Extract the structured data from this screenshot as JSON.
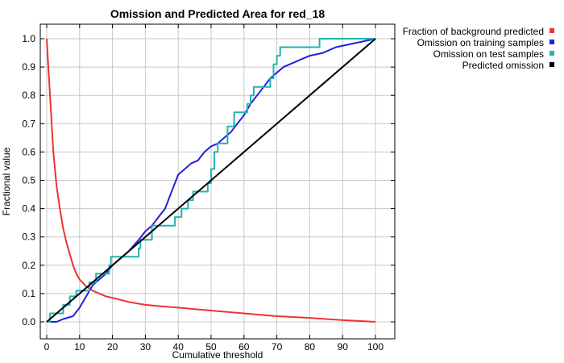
{
  "chart_data": {
    "type": "line",
    "title": "Omission and Predicted Area for red_18",
    "xlabel": "Cumulative threshold",
    "ylabel": "Fractional value",
    "xlim": [
      0,
      100
    ],
    "ylim": [
      0,
      1
    ],
    "xticks": [
      0,
      10,
      20,
      30,
      40,
      50,
      60,
      70,
      80,
      90,
      100
    ],
    "yticks": [
      0.0,
      0.1,
      0.2,
      0.3,
      0.4,
      0.5,
      0.6,
      0.7,
      0.8,
      0.9,
      1.0
    ],
    "xtick_labels": [
      "0",
      "10",
      "20",
      "30",
      "40",
      "50",
      "60",
      "70",
      "80",
      "90",
      "100"
    ],
    "ytick_labels": [
      "0.0",
      "0.1",
      "0.2",
      "0.3",
      "0.4",
      "0.5",
      "0.6",
      "0.7",
      "0.8",
      "0.9",
      "1.0"
    ],
    "grid": true,
    "legend_position": "outside-top-right",
    "series": [
      {
        "name": "Fraction of background predicted",
        "color": "#ee3333",
        "points": [
          [
            0,
            1.0
          ],
          [
            0.5,
            0.9
          ],
          [
            1,
            0.8
          ],
          [
            1.5,
            0.7
          ],
          [
            2,
            0.6
          ],
          [
            3,
            0.48
          ],
          [
            4,
            0.4
          ],
          [
            5,
            0.33
          ],
          [
            6,
            0.28
          ],
          [
            7,
            0.24
          ],
          [
            8,
            0.2
          ],
          [
            9,
            0.17
          ],
          [
            10,
            0.15
          ],
          [
            12,
            0.125
          ],
          [
            14,
            0.11
          ],
          [
            16,
            0.1
          ],
          [
            18,
            0.09
          ],
          [
            20,
            0.085
          ],
          [
            25,
            0.07
          ],
          [
            30,
            0.06
          ],
          [
            35,
            0.055
          ],
          [
            40,
            0.05
          ],
          [
            45,
            0.045
          ],
          [
            50,
            0.04
          ],
          [
            55,
            0.035
          ],
          [
            60,
            0.03
          ],
          [
            65,
            0.025
          ],
          [
            70,
            0.02
          ],
          [
            75,
            0.017
          ],
          [
            80,
            0.014
          ],
          [
            85,
            0.01
          ],
          [
            90,
            0.006
          ],
          [
            95,
            0.003
          ],
          [
            100,
            0.0
          ]
        ]
      },
      {
        "name": "Omission on training samples",
        "color": "#2222dd",
        "points": [
          [
            0,
            0.0
          ],
          [
            3,
            0.0
          ],
          [
            5,
            0.01
          ],
          [
            8,
            0.02
          ],
          [
            10,
            0.05
          ],
          [
            12,
            0.09
          ],
          [
            14,
            0.13
          ],
          [
            16,
            0.15
          ],
          [
            18,
            0.17
          ],
          [
            20,
            0.2
          ],
          [
            22,
            0.22
          ],
          [
            25,
            0.25
          ],
          [
            28,
            0.29
          ],
          [
            30,
            0.32
          ],
          [
            32,
            0.34
          ],
          [
            34,
            0.37
          ],
          [
            36,
            0.4
          ],
          [
            38,
            0.46
          ],
          [
            40,
            0.52
          ],
          [
            42,
            0.54
          ],
          [
            44,
            0.56
          ],
          [
            46,
            0.57
          ],
          [
            48,
            0.6
          ],
          [
            50,
            0.62
          ],
          [
            52,
            0.63
          ],
          [
            54,
            0.65
          ],
          [
            56,
            0.67
          ],
          [
            58,
            0.7
          ],
          [
            60,
            0.73
          ],
          [
            62,
            0.77
          ],
          [
            64,
            0.8
          ],
          [
            66,
            0.83
          ],
          [
            68,
            0.86
          ],
          [
            70,
            0.88
          ],
          [
            72,
            0.9
          ],
          [
            74,
            0.91
          ],
          [
            76,
            0.92
          ],
          [
            78,
            0.93
          ],
          [
            80,
            0.94
          ],
          [
            84,
            0.95
          ],
          [
            88,
            0.97
          ],
          [
            92,
            0.98
          ],
          [
            96,
            0.99
          ],
          [
            100,
            1.0
          ]
        ]
      },
      {
        "name": "Omission on test samples",
        "color": "#22b2b2",
        "steps": [
          [
            0,
            0.0
          ],
          [
            1,
            0.03
          ],
          [
            5,
            0.06
          ],
          [
            7,
            0.09
          ],
          [
            9,
            0.11
          ],
          [
            13,
            0.14
          ],
          [
            15,
            0.17
          ],
          [
            19,
            0.2
          ],
          [
            19.5,
            0.23
          ],
          [
            26,
            0.23
          ],
          [
            28,
            0.26
          ],
          [
            28.5,
            0.29
          ],
          [
            32,
            0.34
          ],
          [
            39,
            0.37
          ],
          [
            41,
            0.4
          ],
          [
            43,
            0.43
          ],
          [
            44.5,
            0.46
          ],
          [
            49,
            0.49
          ],
          [
            50,
            0.54
          ],
          [
            51,
            0.6
          ],
          [
            52,
            0.63
          ],
          [
            55,
            0.69
          ],
          [
            57,
            0.74
          ],
          [
            61,
            0.77
          ],
          [
            62,
            0.8
          ],
          [
            63,
            0.83
          ],
          [
            68,
            0.86
          ],
          [
            69,
            0.91
          ],
          [
            70,
            0.94
          ],
          [
            71,
            0.97
          ],
          [
            82,
            0.97
          ],
          [
            83,
            1.0
          ],
          [
            100,
            1.0
          ]
        ]
      },
      {
        "name": "Predicted omission",
        "color": "#000000",
        "points": [
          [
            0,
            0.0
          ],
          [
            100,
            1.0
          ]
        ]
      }
    ]
  }
}
